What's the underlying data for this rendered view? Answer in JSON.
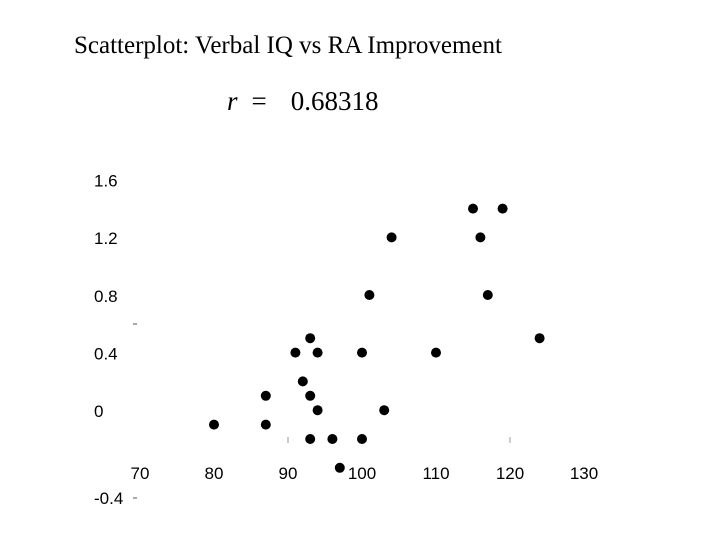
{
  "chart_data": {
    "type": "scatter",
    "title": "Scatterplot: Verbal IQ vs RA Improvement",
    "annotation": {
      "symbol": "r",
      "equals": "=",
      "value": "0.68318"
    },
    "xlabel": "",
    "ylabel": "",
    "xlim": [
      70,
      130
    ],
    "ylim": [
      -0.4,
      1.6
    ],
    "x_ticks": [
      "70",
      "80",
      "90",
      "100",
      "110",
      "120",
      "130"
    ],
    "y_ticks": [
      "1.6",
      "1.2",
      "0.8",
      "0.4",
      "0",
      "-0.4"
    ],
    "grid": false,
    "marker_color": "#000000",
    "points": [
      {
        "x": 80,
        "y": 0.1
      },
      {
        "x": 87,
        "y": 0.3
      },
      {
        "x": 87,
        "y": 0.1
      },
      {
        "x": 91,
        "y": 0.6
      },
      {
        "x": 92,
        "y": 0.4
      },
      {
        "x": 93,
        "y": 0.7
      },
      {
        "x": 93,
        "y": 0.3
      },
      {
        "x": 93,
        "y": 0.0
      },
      {
        "x": 94,
        "y": 0.6
      },
      {
        "x": 94,
        "y": 0.2
      },
      {
        "x": 96,
        "y": 0.0
      },
      {
        "x": 97,
        "y": -0.2
      },
      {
        "x": 100,
        "y": 0.6
      },
      {
        "x": 100,
        "y": 0.0
      },
      {
        "x": 101,
        "y": 1.0
      },
      {
        "x": 103,
        "y": 0.2
      },
      {
        "x": 104,
        "y": 1.4
      },
      {
        "x": 110,
        "y": 0.6
      },
      {
        "x": 115,
        "y": 1.6
      },
      {
        "x": 116,
        "y": 1.4
      },
      {
        "x": 117,
        "y": 1.0
      },
      {
        "x": 119,
        "y": 1.6
      },
      {
        "x": 124,
        "y": 0.7
      }
    ]
  }
}
